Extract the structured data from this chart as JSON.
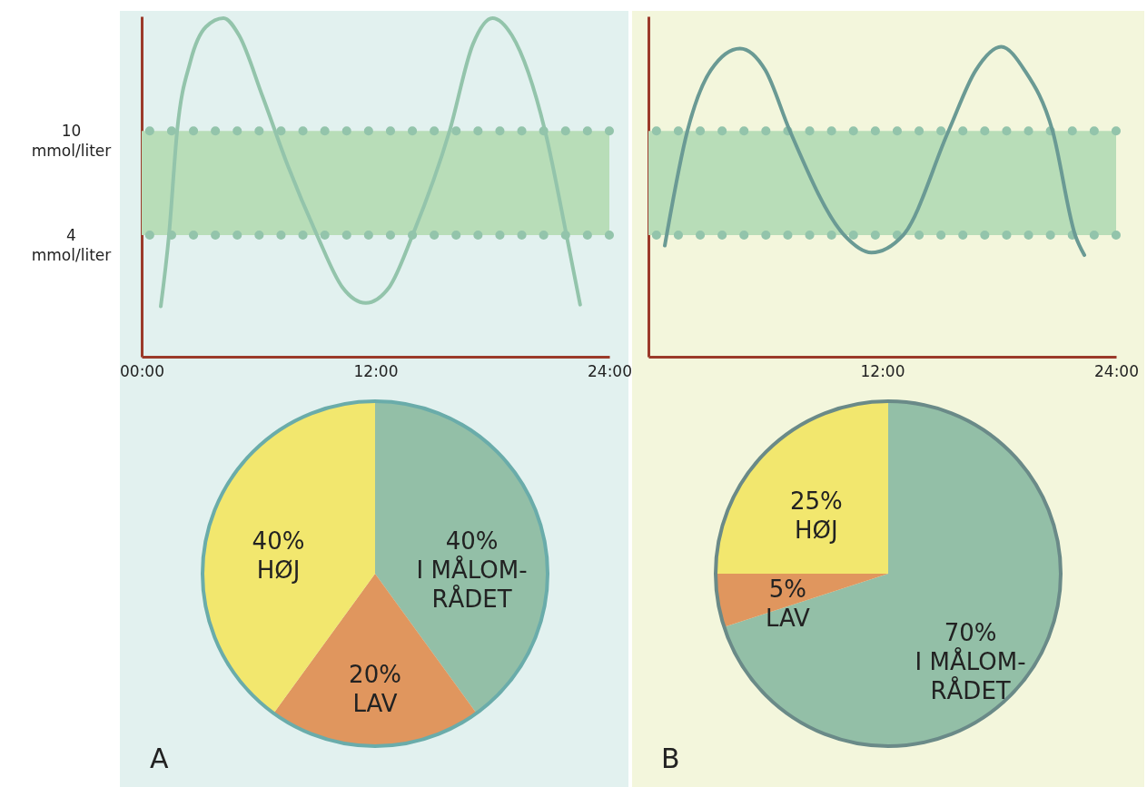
{
  "chart_data": [
    {
      "type": "line",
      "x": [
        0.98,
        1.4,
        1.82,
        2.5,
        3.3,
        4.2,
        5.0,
        6.2,
        7.5,
        9.0,
        10.3,
        11.5,
        12.7,
        13.9,
        15.8,
        17.0,
        18.0,
        19.0,
        20.7,
        21.8,
        22.5
      ],
      "values": [
        -0.1,
        4,
        10,
        14,
        16,
        16.5,
        15.5,
        12,
        8,
        4,
        1,
        0.1,
        1,
        4,
        10,
        15,
        16.5,
        15.5,
        10,
        4,
        0
      ],
      "color": "#93c4ab",
      "xlim": [
        0,
        24
      ],
      "xticks": [
        {
          "value": 0,
          "label": "00:00"
        },
        {
          "value": 12,
          "label": "12:00"
        },
        {
          "value": 24,
          "label": "24:00"
        }
      ],
      "ylim": [
        -3,
        16.6
      ],
      "yticks": [
        {
          "value": 4,
          "label": "4 mmol/liter"
        },
        {
          "value": 10,
          "label": "10 mmol/liter"
        }
      ],
      "bands": [
        {
          "axis": "y",
          "from": 4,
          "to": 10,
          "color": "#b8ddb8"
        }
      ],
      "ref_lines": [
        {
          "axis": "y",
          "value": 4,
          "color": "#93c4ab",
          "line_style": "dotted"
        },
        {
          "axis": "y",
          "value": 10,
          "color": "#93c4ab",
          "line_style": "dotted"
        }
      ],
      "marker": "none",
      "line_style": "solid"
    },
    {
      "type": "pie",
      "categories": [
        "I MÅLOM-RÅDET",
        "LAV",
        "HØJ"
      ],
      "values": [
        40,
        20,
        40
      ],
      "colors": [
        "#93bfa7",
        "#e0965e",
        "#f2e76e"
      ],
      "value_labels": [
        "40%",
        "20%",
        "40%"
      ],
      "annotations": [
        "A"
      ]
    },
    {
      "type": "line",
      "x": [
        0.84,
        2.0,
        3.2,
        4.7,
        6.0,
        7.26,
        10.05,
        11.44,
        13.07,
        15.4,
        16.8,
        18.1,
        19.3,
        20.74,
        21.9,
        22.37
      ],
      "values": [
        3.4,
        10,
        13.5,
        14.75,
        13.5,
        10,
        4,
        3,
        4,
        10,
        13.5,
        14.85,
        13.5,
        10,
        4,
        2.85
      ],
      "color": "#6a9a94",
      "xlim": [
        0,
        24
      ],
      "xticks": [
        {
          "value": 0,
          "label": null
        },
        {
          "value": 12,
          "label": "12:00"
        },
        {
          "value": 24,
          "label": "24:00"
        }
      ],
      "ylim": [
        -3,
        16.6
      ],
      "tick_labels": "x",
      "bands": [
        {
          "axis": "y",
          "from": 4,
          "to": 10,
          "color": "#b8ddb8"
        }
      ],
      "ref_lines": [
        {
          "axis": "y",
          "value": 4,
          "color": "#93c4ab",
          "line_style": "dotted"
        },
        {
          "axis": "y",
          "value": 10,
          "color": "#93c4ab",
          "line_style": "dotted"
        }
      ],
      "marker": "none",
      "line_style": "solid"
    },
    {
      "type": "pie",
      "categories": [
        "I MÅLOM-RÅDET",
        "LAV",
        "HØJ"
      ],
      "values": [
        70,
        5,
        25
      ],
      "colors": [
        "#93bfa7",
        "#e0965e",
        "#f2e76e"
      ],
      "value_labels": [
        "70%",
        "5%",
        "25%"
      ],
      "annotations": [
        "B"
      ]
    }
  ]
}
